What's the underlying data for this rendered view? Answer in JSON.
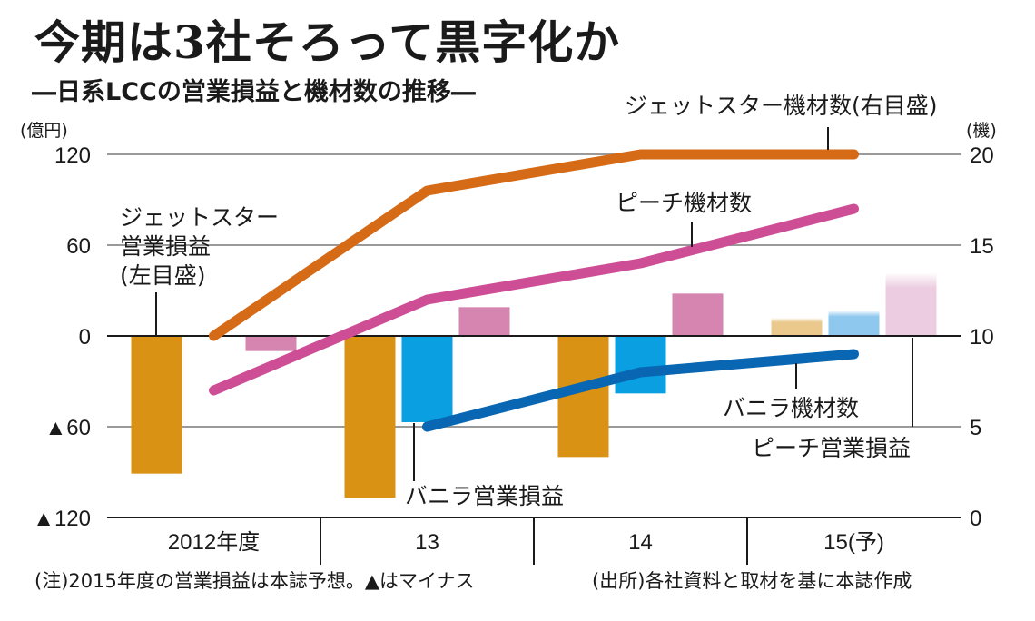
{
  "header": {
    "title": "今期は3社そろって黒字化か",
    "subtitle": "―日系LCCの営業損益と機材数の推移―"
  },
  "footer": {
    "note": "(注)2015年度の営業損益は本誌予想。▲はマイナス",
    "source": "(出所)各社資料と取材を基に本誌作成"
  },
  "chart_data": {
    "type": "bar+line",
    "title": "今期は3社そろって黒字化か",
    "subtitle": "日系LCCの営業損益と機材数の推移",
    "categories": [
      "2012年度",
      "13",
      "14",
      "15(予)"
    ],
    "left_axis": {
      "unit": "(億円)",
      "ylim": [
        -120,
        120
      ],
      "ticks": [
        120,
        60,
        0,
        -60,
        -120
      ],
      "tick_labels": [
        "120",
        "60",
        "0",
        "▲60",
        "▲120"
      ]
    },
    "right_axis": {
      "unit": "(機)",
      "ylim": [
        0,
        20
      ],
      "ticks": [
        20,
        15,
        10,
        5,
        0
      ],
      "tick_labels": [
        "20",
        "15",
        "10",
        "5",
        "0"
      ]
    },
    "grid": true,
    "bar_series": [
      {
        "name": "ジェットスター営業損益",
        "color": "#DA9214",
        "forecast_color": "#EBC98C",
        "values": [
          -91,
          -107,
          -80,
          12
        ]
      },
      {
        "name": "バニラ営業損益",
        "color": "#0A9FE0",
        "forecast_color": "#8FC8EE",
        "values": [
          null,
          -57,
          -38,
          17
        ]
      },
      {
        "name": "ピーチ営業損益",
        "color": "#D585B0",
        "forecast_color": "#ECCCE0",
        "values": [
          -10,
          19,
          28,
          42
        ]
      }
    ],
    "line_series": [
      {
        "name": "ジェットスター機材数",
        "color": "#D56A17",
        "axis": "right",
        "values": [
          10,
          18,
          20,
          20
        ]
      },
      {
        "name": "ピーチ機材数",
        "color": "#CE4E96",
        "axis": "right",
        "values": [
          7,
          12,
          14,
          17
        ]
      },
      {
        "name": "バニラ機材数",
        "color": "#0866B2",
        "axis": "right",
        "values": [
          null,
          5,
          8,
          9
        ]
      }
    ],
    "annotations": [
      {
        "text_lines": [
          "ジェットスター",
          "営業損益",
          "(左目盛)"
        ],
        "target": "ジェットスター営業損益"
      },
      {
        "text_lines": [
          "ジェットスター機材数(右目盛)"
        ],
        "target": "ジェットスター機材数"
      },
      {
        "text_lines": [
          "ピーチ機材数"
        ],
        "target": "ピーチ機材数"
      },
      {
        "text_lines": [
          "バニラ営業損益"
        ],
        "target": "バニラ営業損益"
      },
      {
        "text_lines": [
          "バニラ機材数"
        ],
        "target": "バニラ機材数"
      },
      {
        "text_lines": [
          "ピーチ営業損益"
        ],
        "target": "ピーチ営業損益"
      }
    ],
    "forecast_category_index": 3
  }
}
